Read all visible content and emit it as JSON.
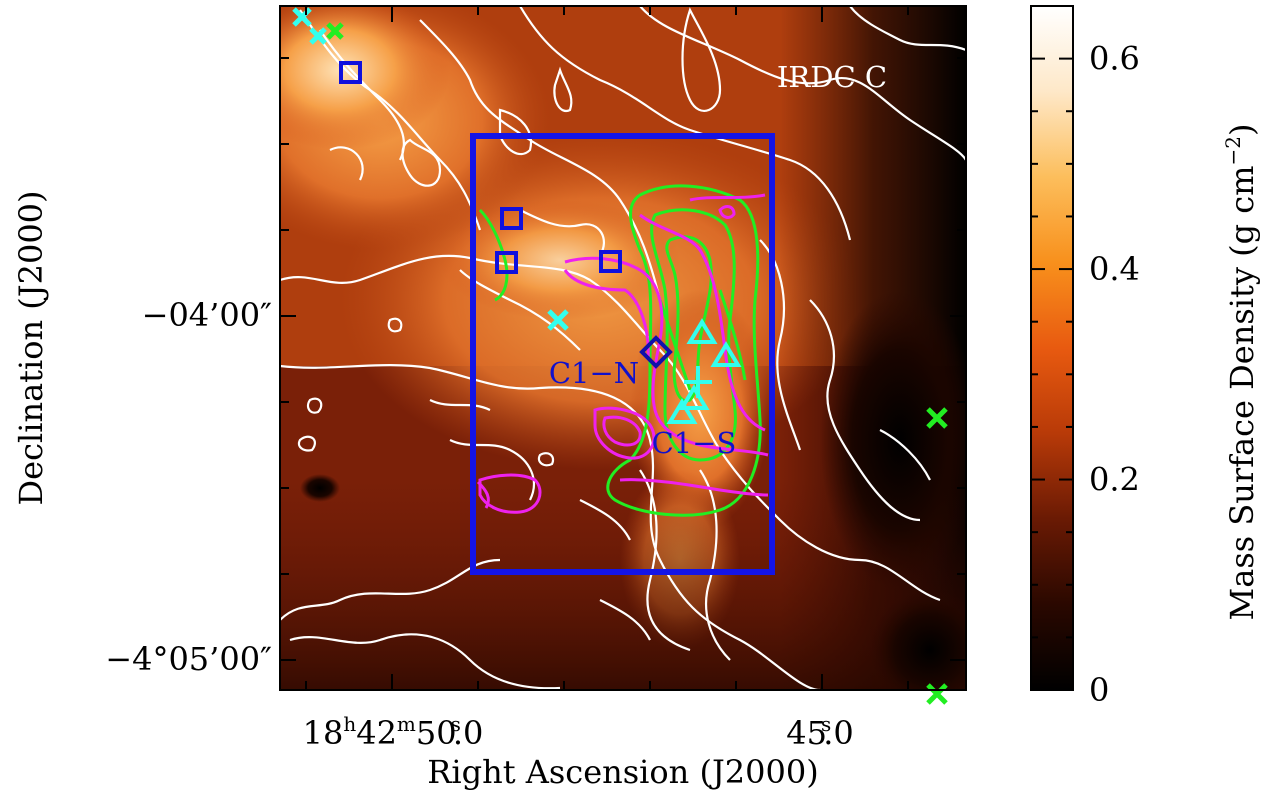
{
  "chart_data": {
    "type": "heatmap",
    "title": "",
    "field_label": "IRDC C",
    "xlabel": "Right Ascension (J2000)",
    "ylabel": "Declination (J2000)",
    "x_ticks": [
      {
        "label_main": "18",
        "h": "h",
        "mid1": "42",
        "m": "m",
        "mid2": "50",
        "s": "s",
        "frac": ".0",
        "value_sec": 50.0
      },
      {
        "label_main": "45",
        "s": "s",
        "frac": ".0",
        "value_sec": 45.0
      }
    ],
    "y_ticks": [
      {
        "label": "−04’00″",
        "value_arcmin": -4.0
      },
      {
        "label": "−4°05’00″",
        "value_arcmin": -5.0
      }
    ],
    "colorbar": {
      "label": "Mass Surface Density (g cm⁻²)",
      "label_main": "Mass Surface Density (g cm",
      "label_exp": "−2",
      "label_close": ")",
      "min": 0,
      "max": 0.65,
      "ticks": [
        {
          "label": "0",
          "value": 0
        },
        {
          "label": "0.2",
          "value": 0.2
        },
        {
          "label": "0.4",
          "value": 0.4
        },
        {
          "label": "0.6",
          "value": 0.6
        }
      ],
      "colors": [
        "#000000",
        "#2a0800",
        "#6a1a04",
        "#b83a08",
        "#e85a10",
        "#f8901c",
        "#fcbe5c",
        "#fee8c8",
        "#ffffff"
      ]
    },
    "annotations": [
      {
        "text": "C1−N",
        "color": "#1010cc"
      },
      {
        "text": "C1−S",
        "color": "#1010cc"
      }
    ],
    "markers": {
      "blue_squares": 4,
      "blue_diamonds": 1,
      "cyan_triangles": 4,
      "cyan_x": 3,
      "green_x": 3,
      "cyan_plus": 1
    },
    "colors": {
      "contour_white": "#ffffff",
      "contour_green": "#22ee22",
      "contour_magenta": "#ee22ee",
      "box_blue": "#1414e6",
      "marker_cyan": "#33ffee"
    }
  }
}
